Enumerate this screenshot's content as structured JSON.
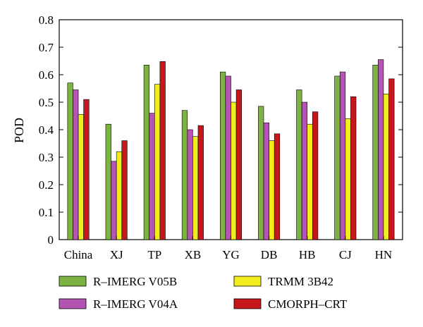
{
  "chart_data": {
    "type": "bar",
    "ylabel": "POD",
    "xlabel": "",
    "ylim": [
      0,
      0.8
    ],
    "yticks": [
      "0",
      "0.1",
      "0.2",
      "0.3",
      "0.4",
      "0.5",
      "0.6",
      "0.7",
      "0.8"
    ],
    "categories": [
      "China",
      "XJ",
      "TP",
      "XB",
      "YG",
      "DB",
      "HB",
      "CJ",
      "HN"
    ],
    "legend_position": "bottom",
    "grid": false,
    "series": [
      {
        "name": "R–IMERG V05B",
        "color": "#7cb342",
        "values": [
          0.57,
          0.42,
          0.635,
          0.47,
          0.61,
          0.485,
          0.545,
          0.595,
          0.635
        ]
      },
      {
        "name": "R–IMERG V04A",
        "color": "#b455b4",
        "values": [
          0.545,
          0.285,
          0.46,
          0.4,
          0.595,
          0.425,
          0.5,
          0.61,
          0.655
        ]
      },
      {
        "name": "TRMM 3B42",
        "color": "#f2ee1d",
        "values": [
          0.455,
          0.32,
          0.565,
          0.375,
          0.5,
          0.36,
          0.42,
          0.44,
          0.53
        ]
      },
      {
        "name": "CMORPH–CRT",
        "color": "#c8161d",
        "values": [
          0.51,
          0.36,
          0.648,
          0.415,
          0.545,
          0.385,
          0.465,
          0.52,
          0.585
        ]
      }
    ]
  }
}
